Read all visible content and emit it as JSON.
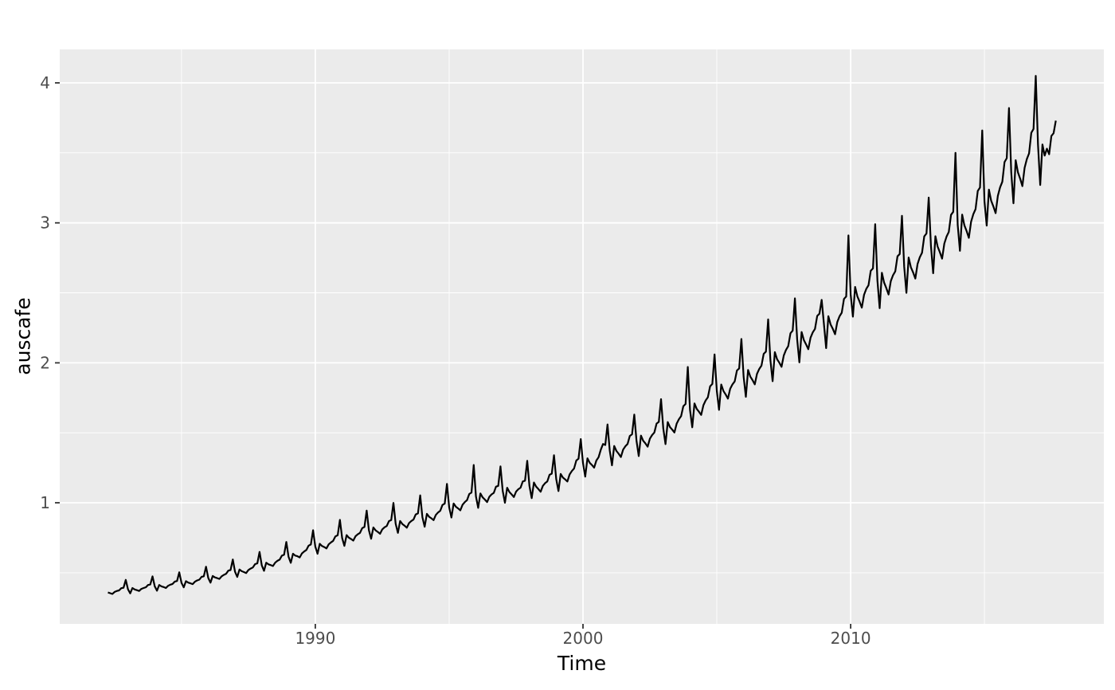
{
  "chart_data": {
    "type": "line",
    "title": "",
    "xlabel": "Time",
    "ylabel": "auscafe",
    "series_name": "auscafe",
    "x_start": 1982.25,
    "frequency": 12,
    "xlim": [
      1980.45,
      2019.46
    ],
    "ylim": [
      0.135,
      4.239
    ],
    "x_major_ticks": [
      1990,
      2000,
      2010
    ],
    "x_major_labels": [
      "1990",
      "2000",
      "2010"
    ],
    "x_minor_ticks": [
      1985,
      1995,
      2005,
      2015
    ],
    "y_major_ticks": [
      1,
      2,
      3,
      4
    ],
    "y_major_labels": [
      "1",
      "2",
      "3",
      "4"
    ],
    "y_minor_ticks": [
      0.5,
      1.5,
      2.5,
      3.5
    ],
    "grid": true,
    "legend": "none",
    "theme": {
      "panel_fill": "#EBEBEB",
      "grid_color": "#FFFFFF",
      "line_color": "#000000",
      "tick_color": "#333333",
      "tick_label_color": "#4D4D4D",
      "axis_title_color": "#000000",
      "background": "#FFFFFF"
    },
    "values": [
      0.359,
      0.354,
      0.349,
      0.363,
      0.37,
      0.374,
      0.39,
      0.393,
      0.449,
      0.382,
      0.353,
      0.391,
      0.381,
      0.376,
      0.37,
      0.385,
      0.391,
      0.396,
      0.413,
      0.416,
      0.474,
      0.403,
      0.372,
      0.413,
      0.403,
      0.398,
      0.391,
      0.407,
      0.415,
      0.42,
      0.437,
      0.441,
      0.503,
      0.428,
      0.396,
      0.44,
      0.43,
      0.425,
      0.419,
      0.436,
      0.445,
      0.451,
      0.471,
      0.475,
      0.543,
      0.463,
      0.429,
      0.477,
      0.467,
      0.462,
      0.456,
      0.475,
      0.485,
      0.493,
      0.515,
      0.52,
      0.595,
      0.507,
      0.47,
      0.523,
      0.511,
      0.505,
      0.498,
      0.52,
      0.53,
      0.538,
      0.562,
      0.567,
      0.649,
      0.553,
      0.514,
      0.572,
      0.56,
      0.555,
      0.548,
      0.572,
      0.585,
      0.594,
      0.622,
      0.629,
      0.72,
      0.615,
      0.571,
      0.636,
      0.623,
      0.618,
      0.61,
      0.638,
      0.652,
      0.663,
      0.694,
      0.702,
      0.804,
      0.687,
      0.636,
      0.707,
      0.691,
      0.684,
      0.674,
      0.703,
      0.717,
      0.728,
      0.76,
      0.768,
      0.878,
      0.748,
      0.692,
      0.769,
      0.751,
      0.741,
      0.73,
      0.761,
      0.775,
      0.785,
      0.819,
      0.827,
      0.944,
      0.804,
      0.743,
      0.824,
      0.803,
      0.792,
      0.779,
      0.81,
      0.825,
      0.834,
      0.869,
      0.876,
      0.999,
      0.85,
      0.785,
      0.87,
      0.848,
      0.836,
      0.822,
      0.855,
      0.87,
      0.88,
      0.917,
      0.924,
      1.053,
      0.896,
      0.829,
      0.921,
      0.9,
      0.889,
      0.876,
      0.913,
      0.931,
      0.943,
      0.985,
      0.994,
      1.135,
      0.967,
      0.895,
      0.995,
      0.972,
      0.96,
      0.946,
      0.986,
      1.005,
      1.019,
      1.063,
      1.073,
      1.27,
      1.045,
      0.964,
      1.067,
      1.039,
      1.023,
      1.005,
      1.043,
      1.06,
      1.071,
      1.115,
      1.121,
      1.26,
      1.085,
      1.0,
      1.107,
      1.077,
      1.06,
      1.041,
      1.08,
      1.097,
      1.108,
      1.152,
      1.158,
      1.3,
      1.119,
      1.033,
      1.145,
      1.115,
      1.098,
      1.079,
      1.121,
      1.14,
      1.153,
      1.2,
      1.208,
      1.34,
      1.169,
      1.084,
      1.206,
      1.18,
      1.167,
      1.152,
      1.202,
      1.227,
      1.245,
      1.302,
      1.315,
      1.455,
      1.284,
      1.187,
      1.318,
      1.286,
      1.27,
      1.251,
      1.302,
      1.326,
      1.38,
      1.42,
      1.413,
      1.56,
      1.373,
      1.268,
      1.406,
      1.37,
      1.35,
      1.327,
      1.38,
      1.404,
      1.42,
      1.478,
      1.489,
      1.63,
      1.443,
      1.334,
      1.48,
      1.443,
      1.424,
      1.401,
      1.458,
      1.484,
      1.502,
      1.566,
      1.578,
      1.74,
      1.532,
      1.419,
      1.577,
      1.541,
      1.523,
      1.502,
      1.565,
      1.596,
      1.619,
      1.69,
      1.706,
      1.97,
      1.662,
      1.539,
      1.71,
      1.671,
      1.651,
      1.628,
      1.697,
      1.731,
      1.754,
      1.832,
      1.849,
      2.06,
      1.801,
      1.664,
      1.845,
      1.798,
      1.773,
      1.744,
      1.814,
      1.846,
      1.867,
      1.945,
      1.96,
      2.17,
      1.9,
      1.757,
      1.949,
      1.901,
      1.876,
      1.846,
      1.921,
      1.956,
      1.98,
      2.064,
      2.08,
      2.31,
      2.02,
      1.869,
      2.076,
      2.026,
      2.001,
      1.971,
      2.052,
      2.092,
      2.119,
      2.211,
      2.23,
      2.46,
      2.169,
      2.003,
      2.22,
      2.163,
      2.132,
      2.097,
      2.179,
      2.217,
      2.242,
      2.335,
      2.351,
      2.45,
      2.279,
      2.105,
      2.333,
      2.274,
      2.242,
      2.204,
      2.291,
      2.332,
      2.358,
      2.456,
      2.474,
      2.91,
      2.488,
      2.33,
      2.542,
      2.475,
      2.437,
      2.394,
      2.486,
      2.528,
      2.554,
      2.657,
      2.674,
      2.99,
      2.587,
      2.39,
      2.643,
      2.573,
      2.533,
      2.488,
      2.584,
      2.626,
      2.653,
      2.761,
      2.777,
      3.05,
      2.687,
      2.5,
      2.752,
      2.683,
      2.646,
      2.602,
      2.706,
      2.754,
      2.786,
      2.903,
      2.924,
      3.18,
      2.836,
      2.64,
      2.904,
      2.83,
      2.79,
      2.744,
      2.852,
      2.902,
      2.935,
      3.057,
      3.079,
      3.5,
      2.985,
      2.8,
      3.059,
      2.982,
      2.941,
      2.893,
      3.008,
      3.062,
      3.098,
      3.228,
      3.252,
      3.66,
      3.154,
      2.98,
      3.237,
      3.158,
      3.117,
      3.069,
      3.193,
      3.253,
      3.293,
      3.434,
      3.462,
      3.82,
      3.363,
      3.14,
      3.447,
      3.361,
      3.316,
      3.262,
      3.393,
      3.455,
      3.496,
      3.643,
      3.671,
      4.05,
      3.56,
      3.27,
      3.56,
      3.48,
      3.53,
      3.49,
      3.62,
      3.64,
      3.73
    ]
  }
}
